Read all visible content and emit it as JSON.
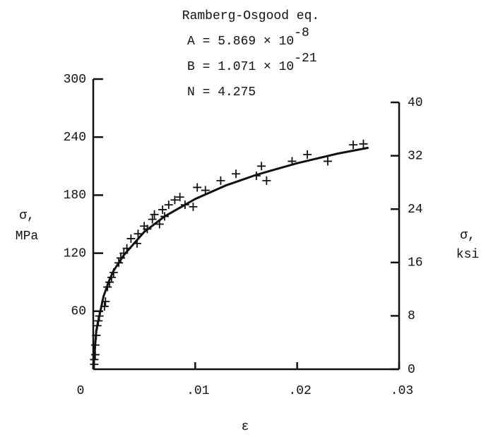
{
  "chart_data": {
    "type": "scatter",
    "title": "Ramberg-Osgood eq.",
    "annotations": [
      {
        "text": "A = 5.869 × 10",
        "exponent": "-8"
      },
      {
        "text": "B = 1.071 × 10",
        "exponent": "-21"
      },
      {
        "text": "N = 4.275"
      }
    ],
    "xlabel": "ε",
    "ylabel": [
      "σ,",
      "MPa"
    ],
    "y2label": [
      "σ,",
      "ksi"
    ],
    "xlim": [
      0,
      0.03
    ],
    "xticks": [
      0,
      {
        "value": 0.01,
        "label": ".01"
      },
      {
        "value": 0.02,
        "label": ".02"
      },
      {
        "value": 0.03,
        "label": ".03"
      }
    ],
    "ylim": [
      0,
      300
    ],
    "yticks": [
      60,
      120,
      180,
      240,
      300
    ],
    "y2lim": [
      0,
      40
    ],
    "y2ticks": [
      0,
      8,
      16,
      24,
      32,
      40
    ],
    "series": [
      {
        "type": "scatter",
        "color": "#111",
        "x": [
          0.0001,
          0.0001,
          0.0002,
          0.0002,
          0.0003,
          0.0004,
          0.0005,
          0.0006,
          0.0011,
          0.0012,
          0.0014,
          0.0016,
          0.0018,
          0.002,
          0.0025,
          0.0027,
          0.003,
          0.0033,
          0.0037,
          0.0043,
          0.0044,
          0.005,
          0.0053,
          0.0058,
          0.006,
          0.0065,
          0.0068,
          0.007,
          0.0074,
          0.008,
          0.0085,
          0.009,
          0.0098,
          0.0102,
          0.011,
          0.0125,
          0.014,
          0.016,
          0.0165,
          0.017,
          0.0195,
          0.021,
          0.023,
          0.0255,
          0.0265
        ],
        "values": [
          5,
          10,
          15,
          25,
          35,
          45,
          50,
          55,
          65,
          70,
          85,
          90,
          95,
          100,
          110,
          115,
          120,
          125,
          135,
          130,
          140,
          148,
          145,
          155,
          160,
          150,
          165,
          158,
          170,
          175,
          178,
          170,
          168,
          188,
          185,
          195,
          202,
          200,
          210,
          195,
          215,
          222,
          215,
          232,
          233
        ]
      },
      {
        "type": "line",
        "color": "#111",
        "x": [
          0,
          0.0003,
          0.0007,
          0.001,
          0.0015,
          0.002,
          0.003,
          0.004,
          0.005,
          0.007,
          0.01,
          0.013,
          0.016,
          0.02,
          0.024,
          0.027
        ],
        "values": [
          0,
          40,
          60,
          75,
          90,
          102,
          118,
          130,
          142,
          158,
          176,
          190,
          201,
          213,
          223,
          229
        ]
      }
    ]
  }
}
